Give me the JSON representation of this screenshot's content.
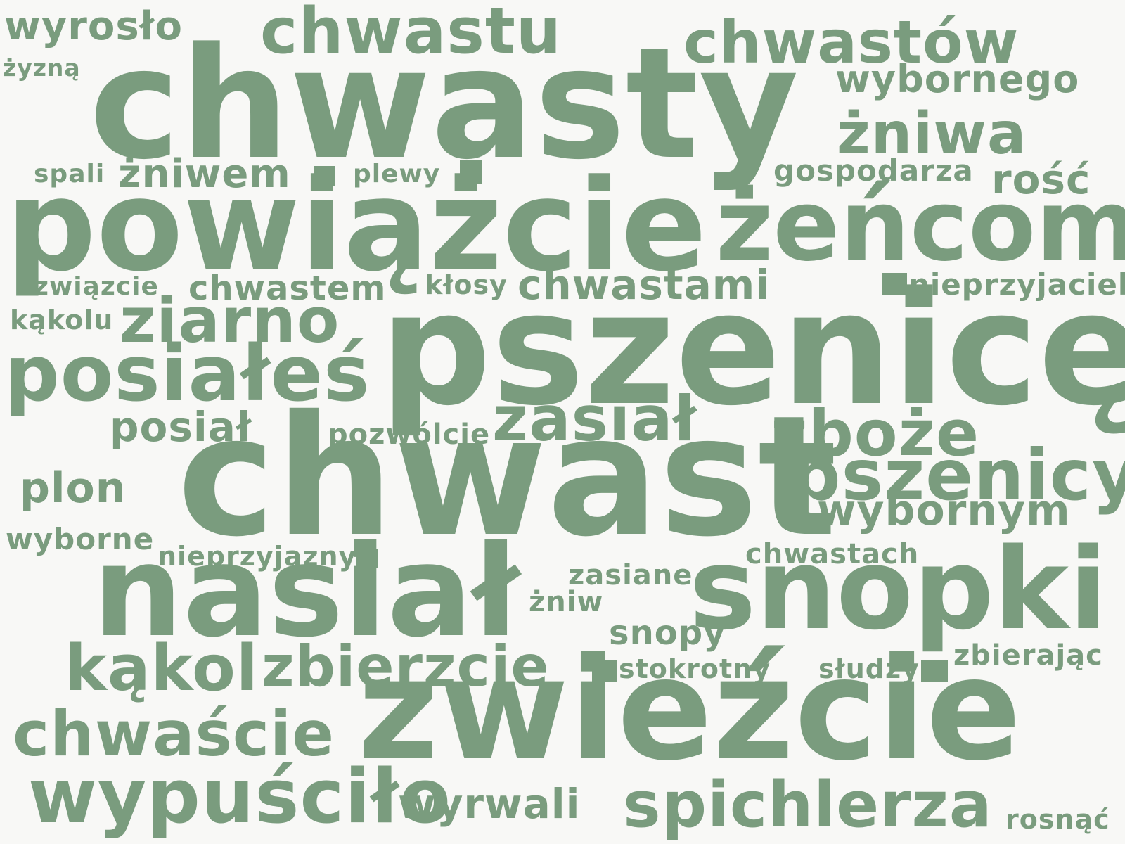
{
  "theme": {
    "word_color": "#7a9c7e",
    "background": "#f8f8f6"
  },
  "words": [
    "wyrosło",
    "żyzną",
    "chwastu",
    "chwastów",
    "chwasty",
    "wybornego",
    "żniwa",
    "spali",
    "żniwem",
    "plewy",
    "gospodarza",
    "rość",
    "powiążcie",
    "żeńcom",
    "związcie",
    "chwastem",
    "kłosy",
    "chwastami",
    "nieprzyjaciel",
    "kąkolu",
    "ziarno",
    "pszenicę",
    "posiałeś",
    "posiał",
    "pozwólcie",
    "zasiał",
    "zboże",
    "chwast",
    "pszenicy",
    "plon",
    "wybornym",
    "wyborne",
    "nieprzyjazny",
    "chwastach",
    "zasiane",
    "nasiał",
    "snopki",
    "żniw",
    "snopy",
    "kąkol",
    "zbierzcie",
    "stokrotny",
    "słudzy",
    "zbierając",
    "zwieźcie",
    "chwaście",
    "wypuściło",
    "wyrwali",
    "spichlerza",
    "rosnąć"
  ]
}
